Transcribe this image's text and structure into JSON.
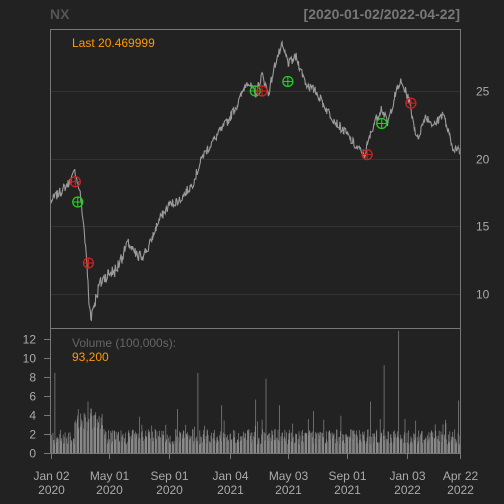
{
  "header": {
    "symbol": "NX",
    "date_range": "[2020-01-02/2022-04-22]"
  },
  "colors": {
    "background": "#222222",
    "panel_border": "#777777",
    "grid": "#333333",
    "price_line": "#9a9a9a",
    "volume_bar": "#8a8a8a",
    "label_orange": "#FF9900",
    "axis_text": "#AAAAAA",
    "buy_marker": "#22CC22",
    "sell_marker": "#CC2222"
  },
  "chart_data": [
    {
      "type": "line",
      "panel": "price",
      "annotation": "Last 20.469999",
      "y_ticks": [
        10,
        15,
        20,
        25
      ],
      "y_axis_side": "right",
      "ylim": [
        7.5,
        29.5
      ],
      "grid": true,
      "x_range": [
        "2020-01-02",
        "2022-04-22"
      ],
      "anchors": [
        [
          "2020-01-02",
          16.9
        ],
        [
          "2020-01-20",
          17.5
        ],
        [
          "2020-02-10",
          18.3
        ],
        [
          "2020-02-21",
          19.1
        ],
        [
          "2020-03-02",
          17.4
        ],
        [
          "2020-03-09",
          15.2
        ],
        [
          "2020-03-16",
          12.1
        ],
        [
          "2020-03-20",
          9.4
        ],
        [
          "2020-03-24",
          8.4
        ],
        [
          "2020-04-10",
          10.6
        ],
        [
          "2020-04-24",
          11.4
        ],
        [
          "2020-05-15",
          11.8
        ],
        [
          "2020-06-08",
          13.8
        ],
        [
          "2020-06-29",
          12.6
        ],
        [
          "2020-07-20",
          13.4
        ],
        [
          "2020-08-10",
          15.4
        ],
        [
          "2020-09-01",
          16.6
        ],
        [
          "2020-09-24",
          17.0
        ],
        [
          "2020-10-20",
          18.2
        ],
        [
          "2020-11-09",
          20.2
        ],
        [
          "2020-12-04",
          21.5
        ],
        [
          "2020-12-31",
          22.8
        ],
        [
          "2021-01-22",
          24.2
        ],
        [
          "2021-02-08",
          25.8
        ],
        [
          "2021-02-25",
          24.7
        ],
        [
          "2021-03-11",
          26.2
        ],
        [
          "2021-03-24",
          24.8
        ],
        [
          "2021-04-09",
          27.3
        ],
        [
          "2021-04-21",
          28.3
        ],
        [
          "2021-05-05",
          27.0
        ],
        [
          "2021-05-20",
          27.5
        ],
        [
          "2021-06-10",
          25.5
        ],
        [
          "2021-07-01",
          24.9
        ],
        [
          "2021-07-22",
          23.6
        ],
        [
          "2021-08-12",
          22.6
        ],
        [
          "2021-09-01",
          21.8
        ],
        [
          "2021-09-22",
          20.8
        ],
        [
          "2021-10-08",
          20.3
        ],
        [
          "2021-10-25",
          22.4
        ],
        [
          "2021-11-12",
          23.8
        ],
        [
          "2021-11-24",
          22.5
        ],
        [
          "2021-12-07",
          24.4
        ],
        [
          "2021-12-20",
          25.7
        ],
        [
          "2022-01-05",
          24.6
        ],
        [
          "2022-01-24",
          21.4
        ],
        [
          "2022-02-10",
          23.2
        ],
        [
          "2022-02-28",
          22.4
        ],
        [
          "2022-03-18",
          23.4
        ],
        [
          "2022-04-05",
          21.0
        ],
        [
          "2022-04-22",
          20.47
        ]
      ],
      "markers": [
        {
          "date": "2020-02-21",
          "price": 18.3,
          "kind": "sell"
        },
        {
          "date": "2020-02-26",
          "price": 16.8,
          "kind": "buy"
        },
        {
          "date": "2020-03-19",
          "price": 12.3,
          "kind": "sell"
        },
        {
          "date": "2021-02-25",
          "price": 25.0,
          "kind": "buy"
        },
        {
          "date": "2021-03-11",
          "price": 25.0,
          "kind": "sell"
        },
        {
          "date": "2021-05-03",
          "price": 25.7,
          "kind": "buy"
        },
        {
          "date": "2021-10-13",
          "price": 20.3,
          "kind": "sell"
        },
        {
          "date": "2021-11-12",
          "price": 22.6,
          "kind": "buy"
        },
        {
          "date": "2022-01-11",
          "price": 24.1,
          "kind": "sell"
        }
      ]
    },
    {
      "type": "bar",
      "panel": "volume",
      "title": "Volume (100,000s):",
      "last_value": "93,200",
      "y_ticks": [
        0,
        2,
        4,
        6,
        8,
        10,
        12
      ],
      "y_axis_side": "left",
      "ylim": [
        0,
        13
      ],
      "x_range": [
        "2020-01-02",
        "2022-04-22"
      ],
      "x_ticks": [
        {
          "date": "2020-01-02",
          "line1": "Jan 02",
          "line2": "2020"
        },
        {
          "date": "2020-05-01",
          "line1": "May 01",
          "line2": "2020"
        },
        {
          "date": "2020-09-01",
          "line1": "Sep 01",
          "line2": "2020"
        },
        {
          "date": "2021-01-04",
          "line1": "Jan 04",
          "line2": "2021"
        },
        {
          "date": "2021-05-03",
          "line1": "May 03",
          "line2": "2021"
        },
        {
          "date": "2021-09-01",
          "line1": "Sep 01",
          "line2": "2021"
        },
        {
          "date": "2022-01-03",
          "line1": "Jan 03",
          "line2": "2022"
        },
        {
          "date": "2022-04-22",
          "line1": "Apr 22",
          "line2": "2022"
        }
      ],
      "spikes": [
        [
          "2020-01-10",
          8.4
        ],
        [
          "2020-02-27",
          4.6
        ],
        [
          "2020-03-10",
          4.2
        ],
        [
          "2020-03-18",
          5.4
        ],
        [
          "2020-03-25",
          4.6
        ],
        [
          "2020-04-08",
          3.2
        ],
        [
          "2020-07-02",
          3.8
        ],
        [
          "2020-09-18",
          4.6
        ],
        [
          "2020-10-30",
          8.4
        ],
        [
          "2020-12-18",
          5.0
        ],
        [
          "2021-02-26",
          5.6
        ],
        [
          "2021-03-19",
          7.8
        ],
        [
          "2021-04-16",
          5.0
        ],
        [
          "2021-06-25",
          4.4
        ],
        [
          "2021-08-20",
          3.9
        ],
        [
          "2021-10-20",
          5.4
        ],
        [
          "2021-11-17",
          9.2
        ],
        [
          "2021-12-17",
          12.8
        ],
        [
          "2022-01-21",
          3.4
        ],
        [
          "2022-03-18",
          3.0
        ],
        [
          "2022-04-19",
          5.5
        ]
      ]
    }
  ]
}
